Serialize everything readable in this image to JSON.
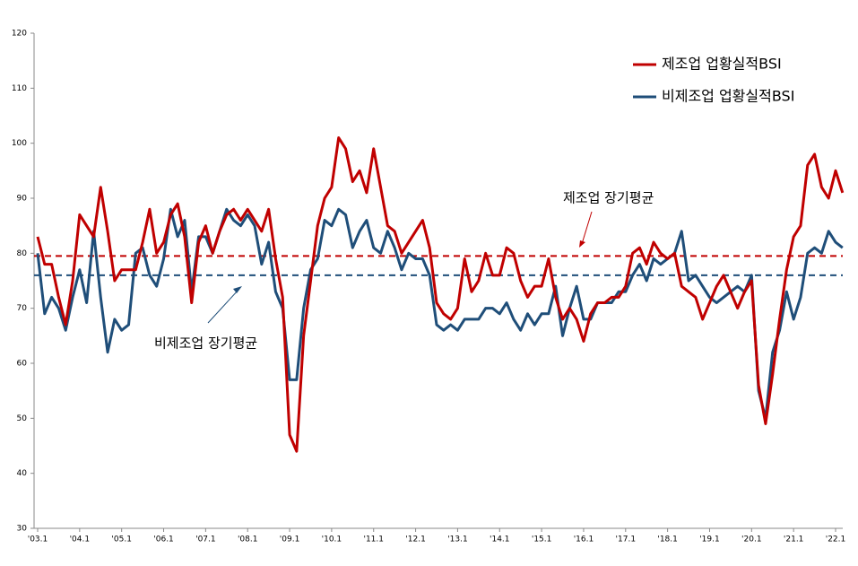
{
  "chart_data": {
    "type": "line",
    "categories": [
      "'03.1",
      null,
      null,
      null,
      null,
      null,
      "'04.1",
      null,
      null,
      null,
      null,
      null,
      "'05.1",
      null,
      null,
      null,
      null,
      null,
      "'06.1",
      null,
      null,
      null,
      null,
      null,
      "'07.1",
      null,
      null,
      null,
      null,
      null,
      "'08.1",
      null,
      null,
      null,
      null,
      null,
      "'09.1",
      null,
      null,
      null,
      null,
      null,
      "'10.1",
      null,
      null,
      null,
      null,
      null,
      "'11.1",
      null,
      null,
      null,
      null,
      null,
      "'12.1",
      null,
      null,
      null,
      null,
      null,
      "'13.1",
      null,
      null,
      null,
      null,
      null,
      "'14.1",
      null,
      null,
      null,
      null,
      null,
      "'15.1",
      null,
      null,
      null,
      null,
      null,
      "'16.1",
      null,
      null,
      null,
      null,
      null,
      "'17.1",
      null,
      null,
      null,
      null,
      null,
      "'18.1",
      null,
      null,
      null,
      null,
      null,
      "'19.1",
      null,
      null,
      null,
      null,
      null,
      "'20.1",
      null,
      null,
      null,
      null,
      null,
      "'21.1",
      null,
      null,
      null,
      null,
      null,
      "'22.1",
      null
    ],
    "series": [
      {
        "name": "제조업 업황실적BSI",
        "color": "#c00000",
        "values": [
          83,
          78,
          78,
          72,
          67,
          75,
          87,
          85,
          83,
          92,
          84,
          75,
          77,
          77,
          77,
          82,
          88,
          80,
          82,
          87,
          89,
          83,
          71,
          82,
          85,
          80,
          84,
          87,
          88,
          86,
          88,
          86,
          84,
          88,
          79,
          72,
          47,
          44,
          65,
          75,
          85,
          90,
          92,
          101,
          99,
          93,
          95,
          91,
          99,
          92,
          85,
          84,
          80,
          82,
          84,
          86,
          81,
          71,
          69,
          68,
          70,
          79,
          73,
          75,
          80,
          76,
          76,
          81,
          80,
          75,
          72,
          74,
          74,
          79,
          72,
          68,
          70,
          68,
          64,
          69,
          71,
          71,
          72,
          72,
          74,
          80,
          81,
          78,
          82,
          80,
          79,
          80,
          74,
          73,
          72,
          68,
          71,
          74,
          76,
          73,
          70,
          73,
          75,
          56,
          49,
          58,
          68,
          77,
          83,
          85,
          96,
          98,
          92,
          90,
          95,
          91
        ]
      },
      {
        "name": "비제조업 업황실적BSI",
        "color": "#1f4e79",
        "values": [
          80,
          69,
          72,
          70,
          66,
          72,
          77,
          71,
          84,
          72,
          62,
          68,
          66,
          67,
          80,
          81,
          76,
          74,
          79,
          88,
          83,
          86,
          73,
          83,
          83,
          80,
          84,
          88,
          86,
          85,
          87,
          85,
          78,
          82,
          73,
          70,
          57,
          57,
          70,
          77,
          79,
          86,
          85,
          88,
          87,
          81,
          84,
          86,
          81,
          80,
          84,
          81,
          77,
          80,
          79,
          79,
          76,
          67,
          66,
          67,
          66,
          68,
          68,
          68,
          70,
          70,
          69,
          71,
          68,
          66,
          69,
          67,
          69,
          69,
          74,
          65,
          70,
          74,
          68,
          68,
          71,
          71,
          71,
          73,
          73,
          76,
          78,
          75,
          79,
          78,
          79,
          80,
          84,
          75,
          76,
          74,
          72,
          71,
          72,
          73,
          74,
          73,
          76,
          55,
          50,
          62,
          66,
          73,
          68,
          72,
          80,
          81,
          80,
          84,
          82,
          81
        ]
      }
    ],
    "reference_lines": [
      {
        "name": "제조업 장기평균",
        "value": 79.5,
        "color": "#c00000"
      },
      {
        "name": "비제조업 장기평균",
        "value": 76,
        "color": "#1f4e79"
      }
    ],
    "ylim": [
      30,
      120
    ],
    "yticks": [
      30,
      40,
      50,
      60,
      70,
      80,
      90,
      100,
      110,
      120
    ]
  }
}
